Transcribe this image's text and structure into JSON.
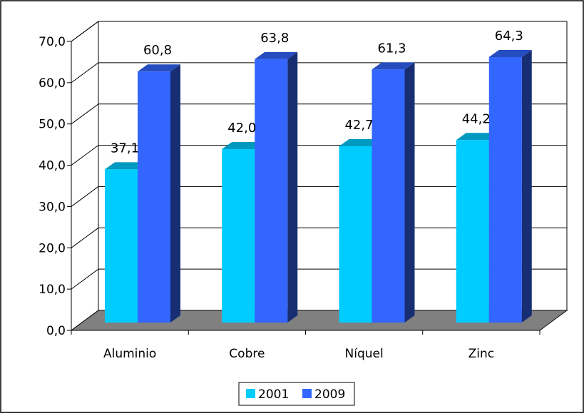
{
  "chart_data": {
    "type": "bar",
    "style": "3d-clustered-column",
    "categories": [
      "Aluminio",
      "Cobre",
      "Níquel",
      "Zinc"
    ],
    "series": [
      {
        "name": "2001",
        "values": [
          37.1,
          42.0,
          42.7,
          44.2
        ],
        "labels": [
          "37,1",
          "42,0",
          "42,7",
          "44,2"
        ],
        "color": "#00ccff"
      },
      {
        "name": "2009",
        "values": [
          60.8,
          63.8,
          61.3,
          64.3
        ],
        "labels": [
          "60,8",
          "63,8",
          "61,3",
          "64,3"
        ],
        "color": "#3366ff"
      }
    ],
    "y_ticks": [
      "0,0",
      "10,0",
      "20,0",
      "30,0",
      "40,0",
      "50,0",
      "60,0",
      "70,0"
    ],
    "ylim": [
      0,
      70
    ],
    "grid": true,
    "legend_position": "bottom",
    "floor_color": "#808080"
  }
}
